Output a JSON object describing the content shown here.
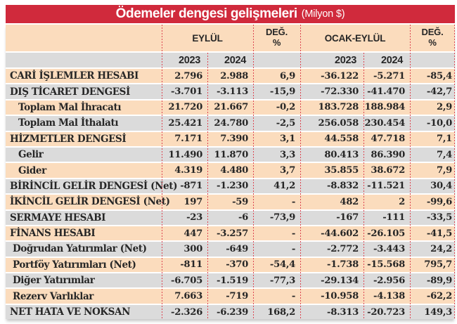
{
  "title": {
    "main": "Ödemeler dengesi gelişmeleri",
    "unit": "(Milyon $)"
  },
  "header": {
    "group_eylul": "EYLÜL",
    "group_ocak_eylul": "OCAK-EYLÜL",
    "deg_line1": "DEĞ.",
    "deg_line2": "%",
    "years": {
      "eylul_2023": "2023",
      "eylul_2024": "2024",
      "ocak_2023": "2023",
      "ocak_2024": "2024"
    }
  },
  "colors": {
    "red": "#d02a3c",
    "peach": "#fbdcbd",
    "gray": "#dbdbdb",
    "divider": "#dc4350",
    "ink": "#262626"
  },
  "chart_data": {
    "type": "table",
    "title": "Ödemeler dengesi gelişmeleri",
    "unit": "Milyon $",
    "column_groups": [
      "EYLÜL",
      "DEĞ. %",
      "OCAK-EYLÜL",
      "DEĞ. %"
    ],
    "columns": [
      "EYLÜL 2023",
      "EYLÜL 2024",
      "DEĞ. %",
      "OCAK-EYLÜL 2023",
      "OCAK-EYLÜL 2024",
      "DEĞ. %"
    ],
    "rows": [
      {
        "label": "CARİ İŞLEMLER HESABI",
        "indent": 0,
        "values": [
          "2.796",
          "2.988",
          "6,9",
          "-36.122",
          "-5.271",
          "-85,4"
        ]
      },
      {
        "label": "DIŞ TİCARET DENGESİ",
        "indent": 0,
        "values": [
          "-3.701",
          "-3.113",
          "-15,9",
          "-72.330",
          "-41.470",
          "-42,7"
        ]
      },
      {
        "label": "Toplam Mal İhracatı",
        "indent": 2,
        "values": [
          "21.720",
          "21.667",
          "-0,2",
          "183.728",
          "188.984",
          "2,9"
        ]
      },
      {
        "label": "Toplam Mal İthalatı",
        "indent": 2,
        "values": [
          "25.421",
          "24.780",
          "-2,5",
          "256.058",
          "230.454",
          "-10,0"
        ]
      },
      {
        "label": "HİZMETLER DENGESİ",
        "indent": 0,
        "values": [
          "7.171",
          "7.390",
          "3,1",
          "44.558",
          "47.718",
          "7,1"
        ]
      },
      {
        "label": "Gelir",
        "indent": 2,
        "values": [
          "11.490",
          "11.870",
          "3,3",
          "80.413",
          "86.390",
          "7,4"
        ]
      },
      {
        "label": "Gider",
        "indent": 2,
        "values": [
          "4.319",
          "4.480",
          "3,7",
          "35.855",
          "38.672",
          "7,9"
        ]
      },
      {
        "label": "BİRİNCİL GELİR DENGESİ (Net)",
        "indent": 0,
        "values": [
          "-871",
          "-1.230",
          "41,2",
          "-8.832",
          "-11.521",
          "30,4"
        ]
      },
      {
        "label": "İKİNCİL GELİR DENGESİ (Net)",
        "indent": 0,
        "values": [
          "197",
          "-59",
          "-",
          "482",
          "2",
          "-99,6"
        ]
      },
      {
        "label": "SERMAYE HESABI",
        "indent": 0,
        "values": [
          "-23",
          "-6",
          "-73,9",
          "-167",
          "-111",
          "-33,5"
        ]
      },
      {
        "label": "FİNANS HESABI",
        "indent": 0,
        "values": [
          "447",
          "-3.257",
          "-",
          "-44.602",
          "-26.105",
          "-41,5"
        ]
      },
      {
        "label": "Doğrudan Yatırımlar (Net)",
        "indent": 1,
        "values": [
          "300",
          "-649",
          "-",
          "-2.772",
          "-3.443",
          "24,2"
        ]
      },
      {
        "label": "Portföy Yatırımları (Net)",
        "indent": 1,
        "values": [
          "-811",
          "-370",
          "-54,4",
          "-1.738",
          "-15.568",
          "795,7"
        ]
      },
      {
        "label": "Diğer Yatırımlar",
        "indent": 1,
        "values": [
          "-6.705",
          "-1.519",
          "-77,3",
          "-29.134",
          "-2.956",
          "-89,9"
        ]
      },
      {
        "label": "Rezerv Varlıklar",
        "indent": 1,
        "values": [
          "7.663",
          "-719",
          "-",
          "-10.958",
          "-4.138",
          "-62,2"
        ]
      },
      {
        "label": "NET HATA VE NOKSAN",
        "indent": 0,
        "values": [
          "-2.326",
          "-6.239",
          "168,2",
          "-8.313",
          "-20.723",
          "149,3"
        ]
      }
    ]
  }
}
